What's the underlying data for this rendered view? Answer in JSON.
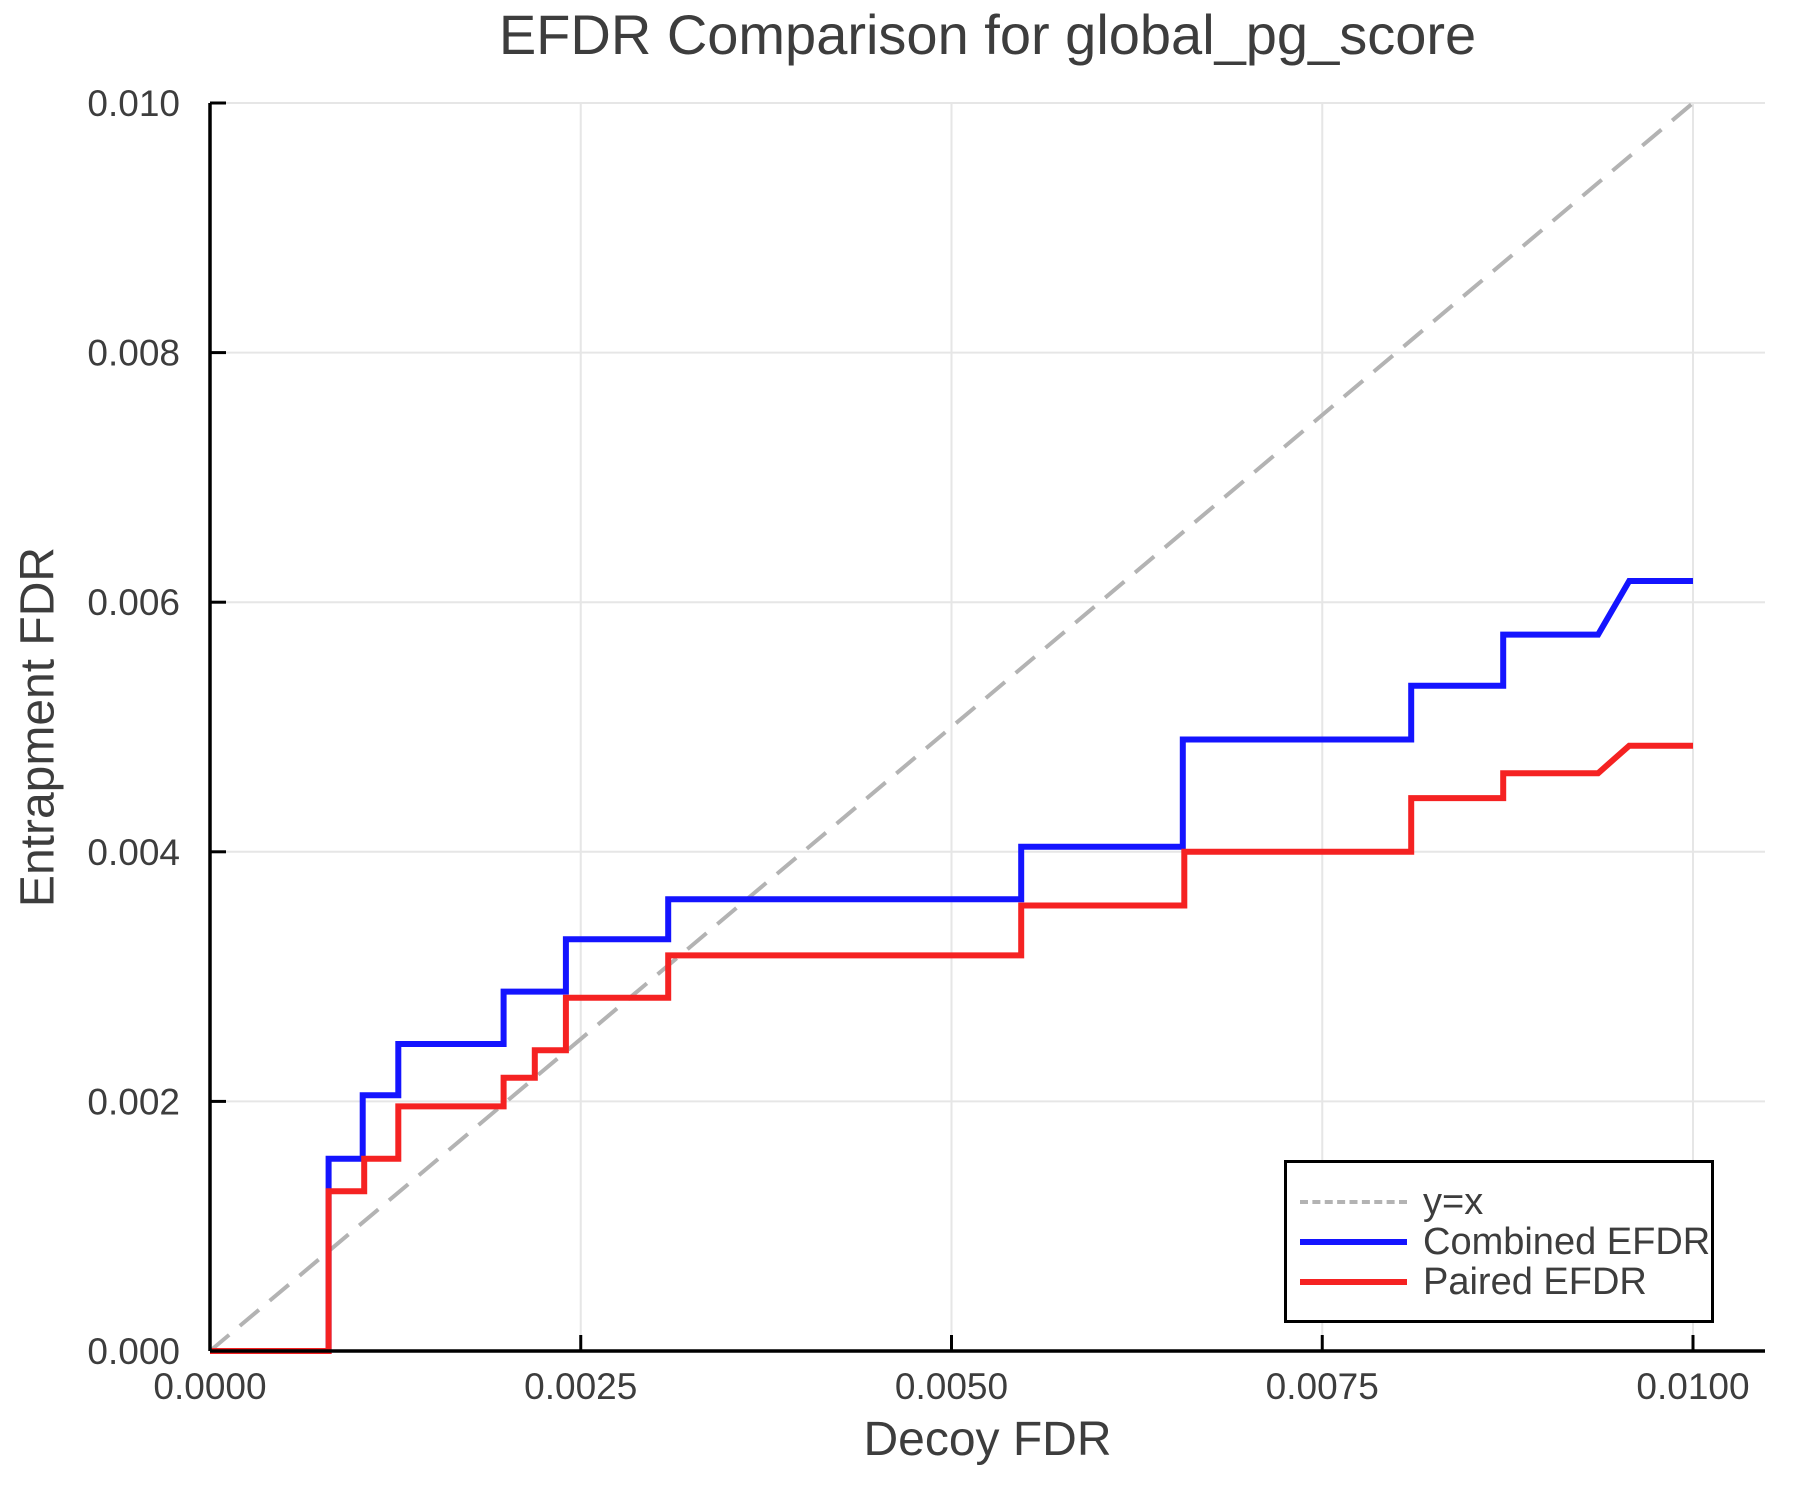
{
  "figure": {
    "background": "#ffffff",
    "text_color": "#3d3d3d",
    "axis_color": "#000000",
    "grid_color": "#e6e6e6"
  },
  "chart_data": {
    "type": "line",
    "title": "EFDR Comparison for global_pg_score",
    "xlabel": "Decoy FDR",
    "ylabel": "Entrapment FDR",
    "xlim": [
      0.0,
      0.01
    ],
    "ylim": [
      0.0,
      0.01
    ],
    "grid": true,
    "legend_position": "bottom-right",
    "x_ticks": {
      "values": [
        0.0,
        0.0025,
        0.005,
        0.0075,
        0.01
      ],
      "labels": [
        "0.0000",
        "0.0025",
        "0.0050",
        "0.0075",
        "0.0100"
      ]
    },
    "y_ticks": {
      "values": [
        0.0,
        0.002,
        0.004,
        0.006,
        0.008,
        0.01
      ],
      "labels": [
        "0.000",
        "0.002",
        "0.004",
        "0.006",
        "0.008",
        "0.010"
      ]
    },
    "series": [
      {
        "name": "y=x",
        "style": "dashed",
        "color": "#b3b3b3",
        "width": 4,
        "points": [
          [
            0.0,
            0.0
          ],
          [
            0.01,
            0.01
          ]
        ]
      },
      {
        "name": "Combined EFDR",
        "style": "solid",
        "color": "#1414ff",
        "width": 6,
        "points": [
          [
            0.0,
            0.0
          ],
          [
            0.0008,
            0.0
          ],
          [
            0.0008,
            0.00154
          ],
          [
            0.00103,
            0.00154
          ],
          [
            0.00103,
            0.00205
          ],
          [
            0.00127,
            0.00205
          ],
          [
            0.00127,
            0.00246
          ],
          [
            0.00198,
            0.00246
          ],
          [
            0.00198,
            0.00288
          ],
          [
            0.0024,
            0.00288
          ],
          [
            0.0024,
            0.0033
          ],
          [
            0.00309,
            0.0033
          ],
          [
            0.00309,
            0.00362
          ],
          [
            0.00547,
            0.00362
          ],
          [
            0.00547,
            0.00404
          ],
          [
            0.00656,
            0.00404
          ],
          [
            0.00656,
            0.0049
          ],
          [
            0.0081,
            0.0049
          ],
          [
            0.0081,
            0.00533
          ],
          [
            0.00872,
            0.00533
          ],
          [
            0.00872,
            0.00574
          ],
          [
            0.00936,
            0.00574
          ],
          [
            0.00957,
            0.00617
          ],
          [
            0.01,
            0.00617
          ]
        ]
      },
      {
        "name": "Paired EFDR",
        "style": "solid",
        "color": "#f52222",
        "width": 6,
        "points": [
          [
            0.0,
            0.0
          ],
          [
            0.0008,
            0.0
          ],
          [
            0.0008,
            0.00128
          ],
          [
            0.00104,
            0.00128
          ],
          [
            0.00104,
            0.00154
          ],
          [
            0.00127,
            0.00154
          ],
          [
            0.00127,
            0.00196
          ],
          [
            0.00198,
            0.00196
          ],
          [
            0.00198,
            0.00219
          ],
          [
            0.00219,
            0.00219
          ],
          [
            0.00219,
            0.00241
          ],
          [
            0.0024,
            0.00241
          ],
          [
            0.0024,
            0.00283
          ],
          [
            0.00309,
            0.00283
          ],
          [
            0.00309,
            0.00317
          ],
          [
            0.00547,
            0.00317
          ],
          [
            0.00547,
            0.00357
          ],
          [
            0.00657,
            0.00357
          ],
          [
            0.00657,
            0.004
          ],
          [
            0.0081,
            0.004
          ],
          [
            0.0081,
            0.00443
          ],
          [
            0.00872,
            0.00443
          ],
          [
            0.00872,
            0.00463
          ],
          [
            0.00936,
            0.00463
          ],
          [
            0.00957,
            0.00485
          ],
          [
            0.01,
            0.00485
          ]
        ]
      }
    ]
  }
}
